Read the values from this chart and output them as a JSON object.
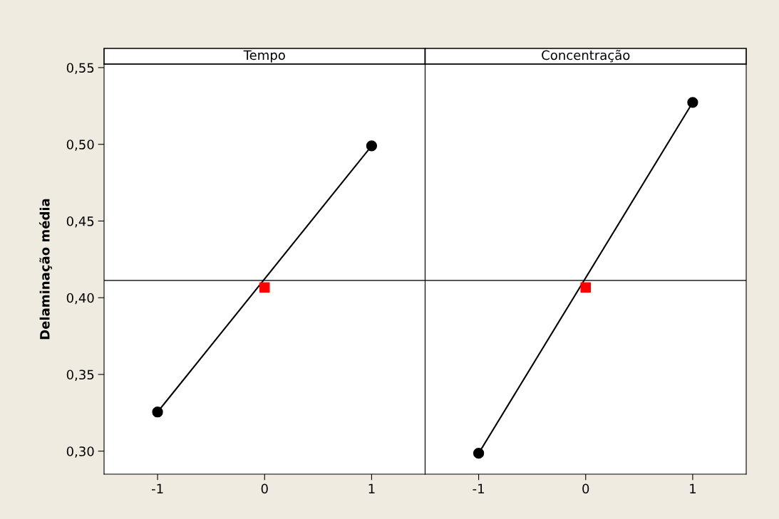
{
  "chart_data": [
    {
      "type": "line",
      "title": "Tempo",
      "ylabel": "Delaminação média",
      "xlim": [
        -1.5,
        1.5
      ],
      "xticks": [
        -1,
        0,
        1
      ],
      "ylim": [
        0.285,
        0.5523
      ],
      "yticks": [
        {
          "value": 0.3,
          "label": "0,30"
        },
        {
          "value": 0.35,
          "label": "0,35"
        },
        {
          "value": 0.4,
          "label": "0,40"
        },
        {
          "value": 0.45,
          "label": "0,45"
        },
        {
          "value": 0.5,
          "label": "0,50"
        },
        {
          "value": 0.55,
          "label": "0,55"
        }
      ],
      "series": [
        {
          "x": [
            -1,
            1
          ],
          "color": "#000000",
          "values": [
            0.3255,
            0.499
          ],
          "marker": "circle"
        },
        {
          "type": "scatter",
          "x": [
            0
          ],
          "color": "#ff0000",
          "values": [
            0.4067
          ],
          "marker": "square"
        }
      ],
      "ref_lines": [
        {
          "axis": "y",
          "value": 0.4113,
          "color": "#404040"
        }
      ],
      "grid": false,
      "legend": false
    },
    {
      "type": "line",
      "title": "Concentração",
      "xlim": [
        -1.5,
        1.5
      ],
      "xticks": [
        -1,
        0,
        1
      ],
      "ylim": [
        0.285,
        0.5523
      ],
      "yticks": [
        {
          "value": 0.3,
          "label": null
        },
        {
          "value": 0.35,
          "label": null
        },
        {
          "value": 0.4,
          "label": null
        },
        {
          "value": 0.45,
          "label": null
        },
        {
          "value": 0.5,
          "label": null
        },
        {
          "value": 0.55,
          "label": null
        }
      ],
      "tick_labels": "x",
      "series": [
        {
          "x": [
            -1,
            1
          ],
          "color": "#000000",
          "values": [
            0.2986,
            0.5273
          ],
          "marker": "circle"
        },
        {
          "type": "scatter",
          "x": [
            0
          ],
          "color": "#ff0000",
          "values": [
            0.4067
          ],
          "marker": "square"
        }
      ],
      "ref_lines": [
        {
          "axis": "y",
          "value": 0.4113,
          "color": "#404040"
        }
      ],
      "grid": false,
      "legend": false
    }
  ]
}
